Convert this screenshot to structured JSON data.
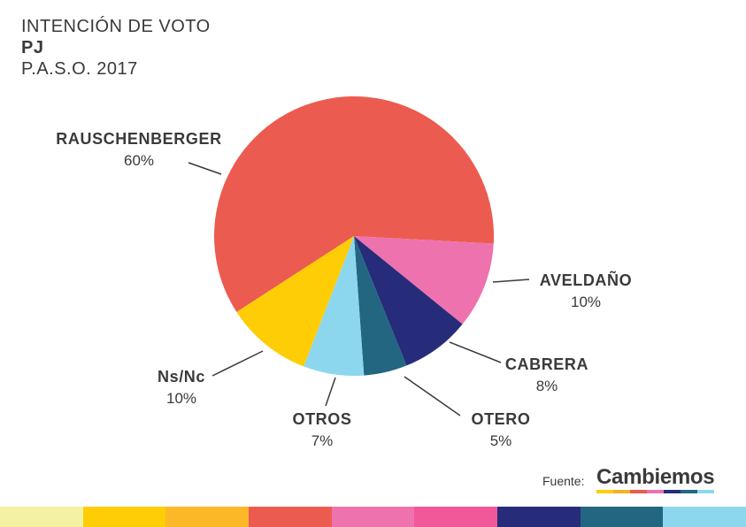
{
  "header": {
    "title": "INTENCIÓN DE VOTO",
    "subtitle": "PJ",
    "period": "P.A.S.O. 2017"
  },
  "chart_data": {
    "type": "pie",
    "slices": [
      {
        "label": "RAUSCHENBERGER",
        "value": 60,
        "value_label": "60%",
        "color": "#EC5B4F"
      },
      {
        "label": "AVELDAÑO",
        "value": 10,
        "value_label": "10%",
        "color": "#EE72AE"
      },
      {
        "label": "CABRERA",
        "value": 8,
        "value_label": "8%",
        "color": "#262B7A"
      },
      {
        "label": "OTERO",
        "value": 5,
        "value_label": "5%",
        "color": "#236682"
      },
      {
        "label": "OTROS",
        "value": 7,
        "value_label": "7%",
        "color": "#8DD7EE"
      },
      {
        "label": "Ns/Nc",
        "value": 10,
        "value_label": "10%",
        "color": "#FFCD05"
      }
    ]
  },
  "footer": {
    "source_label": "Fuente:",
    "logo_text": "Cambiemos",
    "logo_colors": [
      "#FFCD05",
      "#F4B223",
      "#EC5B4F",
      "#EE72AE",
      "#262B7A",
      "#236682",
      "#8DD7EE"
    ],
    "strip_colors": [
      "#F4F1A3",
      "#FFCD05",
      "#FDB827",
      "#EC5B4F",
      "#EE72AE",
      "#F0589A",
      "#262B7A",
      "#236682",
      "#8DD7EE"
    ]
  }
}
